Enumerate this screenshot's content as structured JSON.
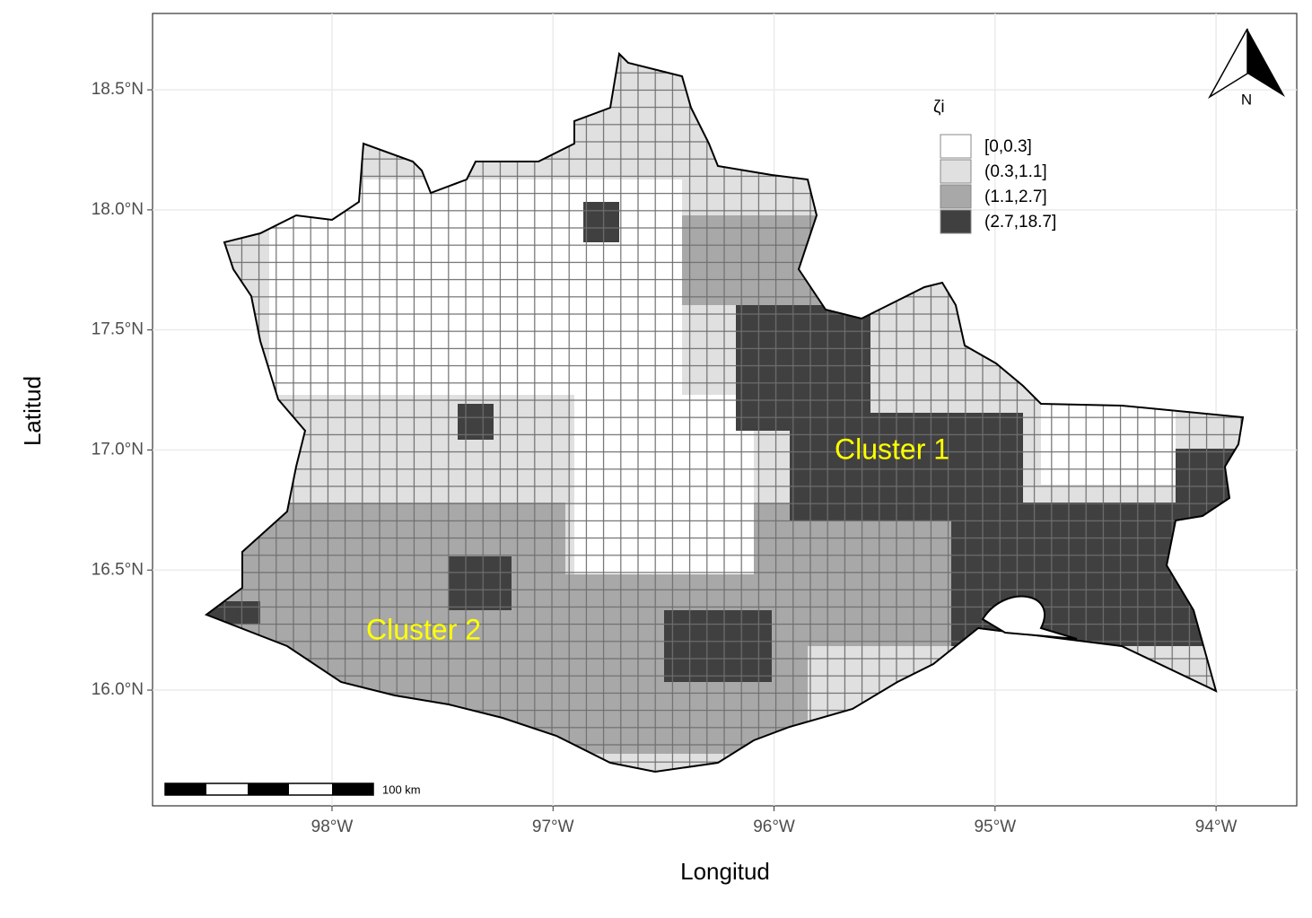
{
  "map": {
    "x_label": "Longitud",
    "y_label": "Latitud",
    "xlim": [
      -98.812,
      -93.635
    ],
    "ylim": [
      15.518,
      18.818
    ],
    "xticks": [
      {
        "value": -98,
        "label": "98°W"
      },
      {
        "value": -97,
        "label": "97°W"
      },
      {
        "value": -96,
        "label": "96°W"
      },
      {
        "value": -95,
        "label": "95°W"
      },
      {
        "value": -94,
        "label": "94°W"
      }
    ],
    "yticks": [
      {
        "value": 16.0,
        "label": "16.0°N"
      },
      {
        "value": 16.5,
        "label": "16.5°N"
      },
      {
        "value": 17.0,
        "label": "17.0°N"
      },
      {
        "value": 17.5,
        "label": "17.5°N"
      },
      {
        "value": 18.0,
        "label": "18.0°N"
      },
      {
        "value": 18.5,
        "label": "18.5°N"
      }
    ],
    "grid": true,
    "legend": {
      "title": "ζi",
      "items": [
        {
          "name": "[0,0.3]",
          "color": "#ffffff"
        },
        {
          "name": "(0.3,1.1]",
          "color": "#e0e0e0"
        },
        {
          "name": "(1.1,2.7]",
          "color": "#a8a8a8"
        },
        {
          "name": "(2.7,18.7]",
          "color": "#404040"
        }
      ]
    },
    "annotations": [
      "Cluster 1",
      "Cluster 2"
    ],
    "scale_bar": "100 km",
    "north": "N"
  }
}
